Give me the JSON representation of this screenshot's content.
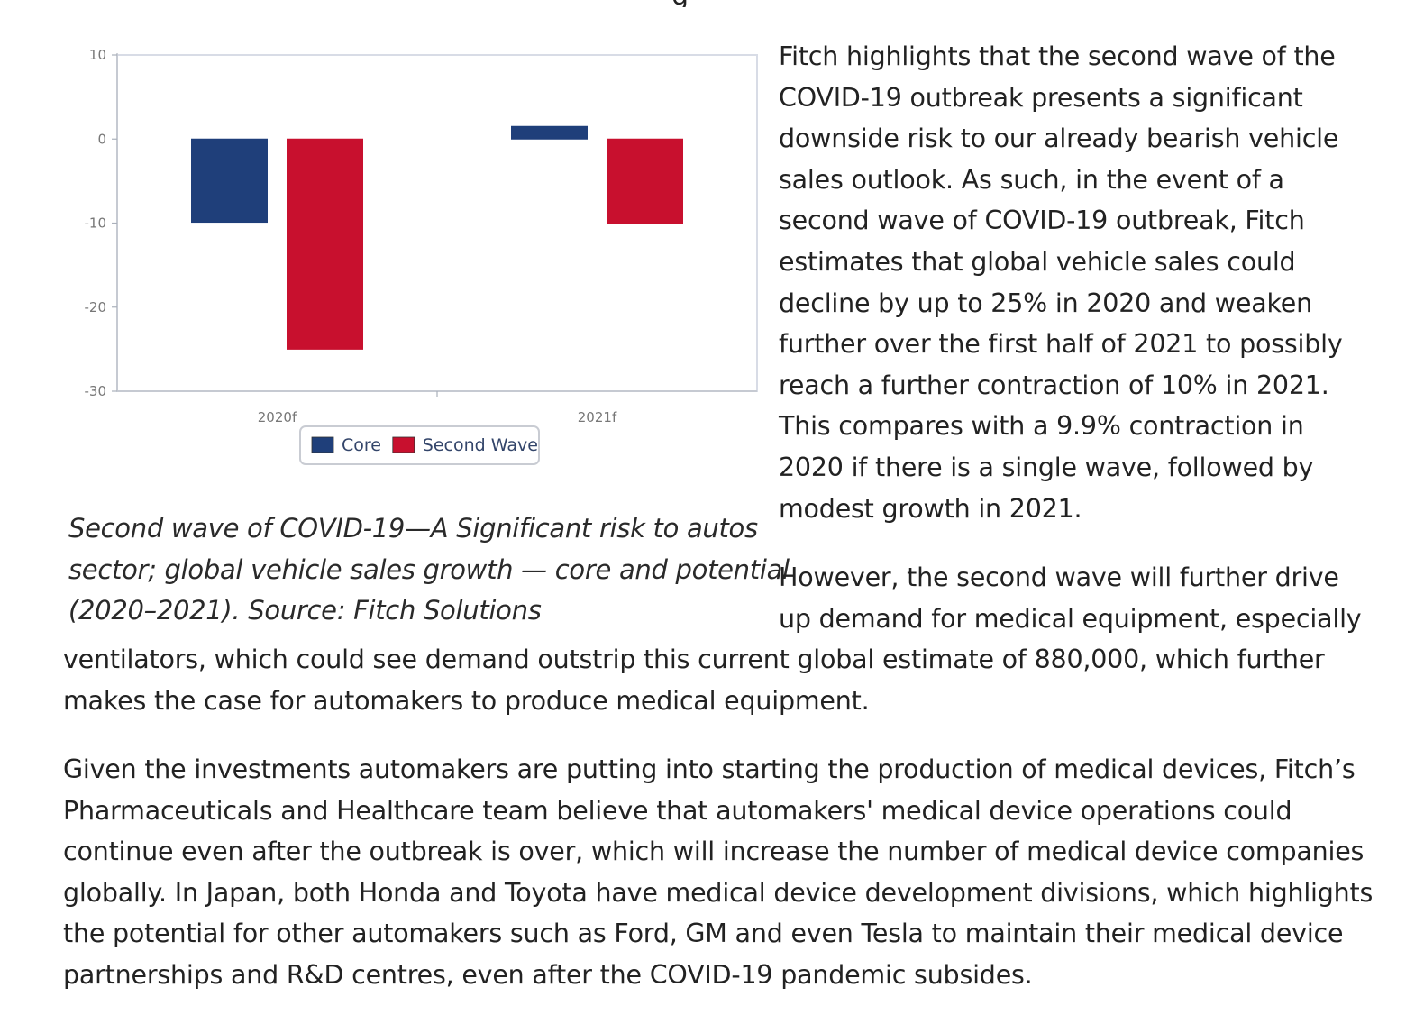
{
  "top_partial_text": "g",
  "chart_data": {
    "type": "bar",
    "categories": [
      "2020f",
      "2021f"
    ],
    "series": [
      {
        "name": "Core",
        "values": [
          -9.9,
          1.5
        ],
        "color": "#1f3f7a"
      },
      {
        "name": "Second Wave",
        "values": [
          -25,
          -10
        ],
        "color": "#c8102e"
      }
    ],
    "ylim": [
      -30,
      10
    ],
    "yticks": [
      10,
      0,
      -10,
      -20,
      -30
    ],
    "ytick_labels": [
      "10",
      "0",
      "-10",
      "-20",
      "-30"
    ],
    "grid": false,
    "legend": "bottom-center",
    "title": "",
    "xlabel": "",
    "ylabel": ""
  },
  "caption_lines": [
    "Second wave of COVID-19—A Significant risk to autos",
    "sector; global vehicle sales growth — core and potential",
    "(2020–2021). Source: Fitch Solutions"
  ],
  "paragraph1_lines": [
    "Fitch highlights that the second wave of the",
    "COVID-19 outbreak presents a significant",
    "downside risk to our already bearish vehicle",
    "sales outlook. As such, in the event of a",
    "second wave of COVID-19 outbreak, Fitch",
    "estimates that global vehicle sales could",
    "decline by up to 25% in 2020 and weaken",
    "further over the first half of 2021 to possibly",
    "reach a further contraction of 10% in 2021.",
    "This compares with a 9.9% contraction in",
    "2020 if there is a single wave, followed by",
    "modest growth in 2021."
  ],
  "paragraph2_right_lines": [
    "However, the second wave will further drive",
    "up demand for medical equipment, especially"
  ],
  "paragraph2_full_lines": [
    "ventilators, which could see demand outstrip this current global estimate of 880,000, which further",
    "makes the case for automakers to produce medical equipment."
  ],
  "paragraph3_lines": [
    "Given the investments automakers are putting into starting the production of medical devices, Fitch’s",
    "Pharmaceuticals and Healthcare team believe that automakers' medical device operations could",
    "continue even after the outbreak is over, which will increase the number of medical device companies",
    "globally. In Japan, both Honda and Toyota have medical device development divisions, which highlights",
    "the potential for other automakers such as Ford, GM and even Tesla to maintain their medical device",
    "partnerships and R&D centres, even after the COVID-19 pandemic subsides."
  ]
}
